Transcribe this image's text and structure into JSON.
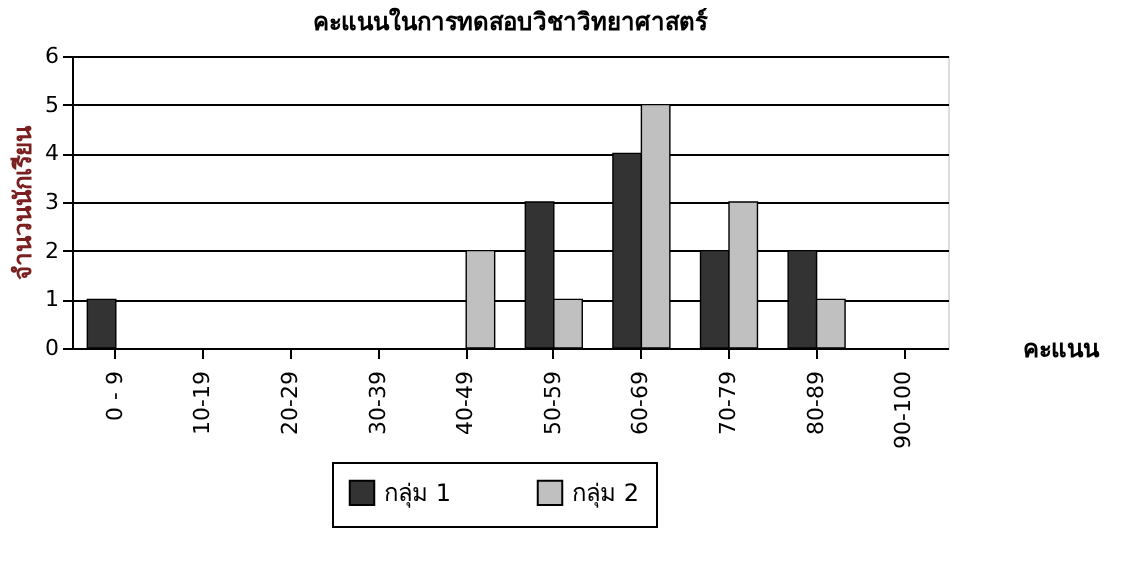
{
  "chart_data": {
    "type": "bar",
    "title": "คะแนนในการทดสอบวิชาวิทยาศาสตร์",
    "xlabel": "คะแนน",
    "ylabel": "จำนวนนักเรียน",
    "categories": [
      "0 - 9",
      "10-19",
      "20-29",
      "30-39",
      "40-49",
      "50-59",
      "60-69",
      "70-79",
      "80-89",
      "90-100"
    ],
    "series": [
      {
        "name": "กลุ่ม 1",
        "color": "#333333",
        "values": [
          1,
          0,
          0,
          0,
          0,
          3,
          4,
          2,
          2,
          0
        ]
      },
      {
        "name": "กลุ่ม 2",
        "color": "#c0c0c0",
        "values": [
          0,
          0,
          0,
          0,
          2,
          1,
          5,
          3,
          1,
          0
        ]
      }
    ],
    "ylim": [
      0,
      6
    ],
    "yticks": [
      0,
      1,
      2,
      3,
      4,
      5,
      6
    ],
    "grid": "y",
    "legend": "bottom"
  }
}
